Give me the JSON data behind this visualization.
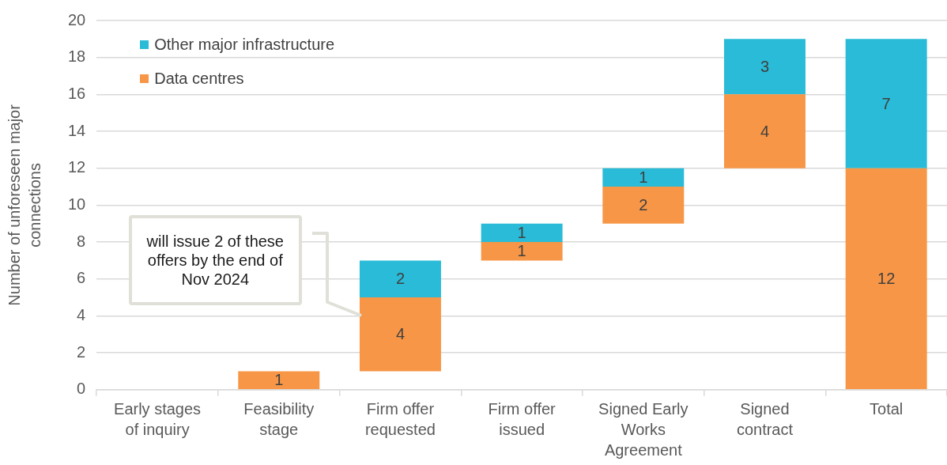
{
  "chart_data": {
    "type": "bar",
    "ylabel": "Number of unforeseen major connections",
    "categories": [
      "Early stages of inquiry",
      "Feasibility stage",
      "Firm offer requested",
      "Firm offer issued",
      "Signed Early Works Agreement",
      "Signed contract",
      "Total"
    ],
    "series": [
      {
        "name": "Data centres",
        "color": "#f79646",
        "values": [
          null,
          1,
          4,
          1,
          2,
          4,
          12
        ],
        "base": [
          null,
          0,
          1,
          7,
          9,
          12,
          0
        ]
      },
      {
        "name": "Other major infrastructure",
        "color": "#29bbd7",
        "values": [
          null,
          null,
          2,
          1,
          1,
          3,
          7
        ],
        "base": [
          null,
          null,
          5,
          8,
          11,
          16,
          12
        ]
      }
    ],
    "ylim": [
      0,
      20
    ],
    "yticks": [
      0,
      2,
      4,
      6,
      8,
      10,
      12,
      14,
      16,
      18,
      20
    ],
    "grid": "y",
    "legend": "top left",
    "data_labels": true,
    "annotations": [
      "will issue 2 of these offers by the end of Nov 2024"
    ]
  }
}
